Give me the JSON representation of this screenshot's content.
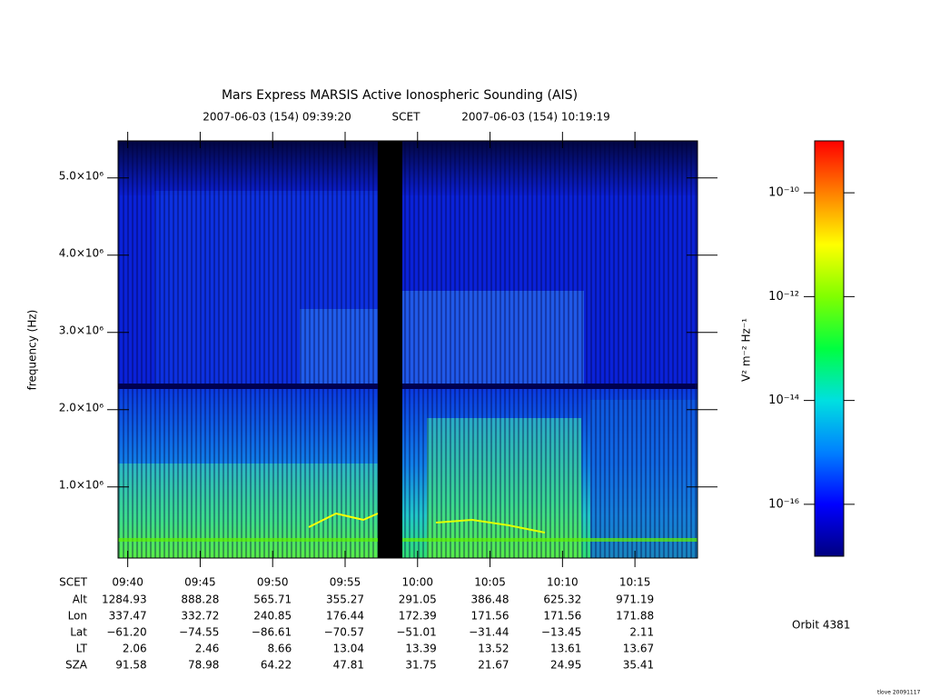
{
  "chart_data": {
    "type": "spectrogram",
    "title": "Mars Express MARSIS Active Ionospheric Sounding (AIS)",
    "subtitle_start": "2007-06-03 (154) 09:39:20",
    "subtitle_frame": "SCET",
    "subtitle_end": "2007-06-03 (154) 10:19:19",
    "y_label": "frequency (Hz)",
    "ylim": [
      80000,
      5480000
    ],
    "yticks": [
      {
        "value": 1000000,
        "label": "1.0×10⁶"
      },
      {
        "value": 2000000,
        "label": "2.0×10⁶"
      },
      {
        "value": 3000000,
        "label": "3.0×10⁶"
      },
      {
        "value": 4000000,
        "label": "4.0×10⁶"
      },
      {
        "value": 5000000,
        "label": "5.0×10⁶"
      }
    ],
    "x_label": "SCET",
    "xticks": [
      "09:40",
      "09:45",
      "09:50",
      "09:55",
      "10:00",
      "10:05",
      "10:10",
      "10:15"
    ],
    "ephemeris": [
      {
        "label": "Alt",
        "values": [
          "1284.93",
          "888.28",
          "565.71",
          "355.27",
          "291.05",
          "386.48",
          "625.32",
          "971.19"
        ]
      },
      {
        "label": "Lon",
        "values": [
          "337.47",
          "332.72",
          "240.85",
          "176.44",
          "172.39",
          "171.56",
          "171.56",
          "171.88"
        ]
      },
      {
        "label": "Lat",
        "values": [
          "−61.20",
          "−74.55",
          "−86.61",
          "−70.57",
          "−51.01",
          "−31.44",
          "−13.45",
          "2.11"
        ]
      },
      {
        "label": "LT",
        "values": [
          "2.06",
          "2.46",
          "8.66",
          "13.04",
          "13.39",
          "13.52",
          "13.61",
          "13.67"
        ]
      },
      {
        "label": "SZA",
        "values": [
          "91.58",
          "78.98",
          "64.22",
          "47.81",
          "31.75",
          "21.67",
          "24.95",
          "35.41"
        ]
      }
    ],
    "colorbar": {
      "label": "V² m⁻² Hz⁻¹",
      "scale": "log",
      "zlim": [
        1e-17,
        1e-09
      ],
      "ticks": [
        {
          "value": 1e-10,
          "label": "10⁻¹⁰"
        },
        {
          "value": 1e-12,
          "label": "10⁻¹²"
        },
        {
          "value": 1e-14,
          "label": "10⁻¹⁴"
        },
        {
          "value": 1e-16,
          "label": "10⁻¹⁶"
        }
      ],
      "colors": [
        "#000080",
        "#0000ff",
        "#0080ff",
        "#00e0e0",
        "#00ff40",
        "#80ff00",
        "#ffff00",
        "#ff8000",
        "#ff0000"
      ]
    },
    "orbit": "Orbit 4381",
    "credit": "tlove 20091117"
  }
}
